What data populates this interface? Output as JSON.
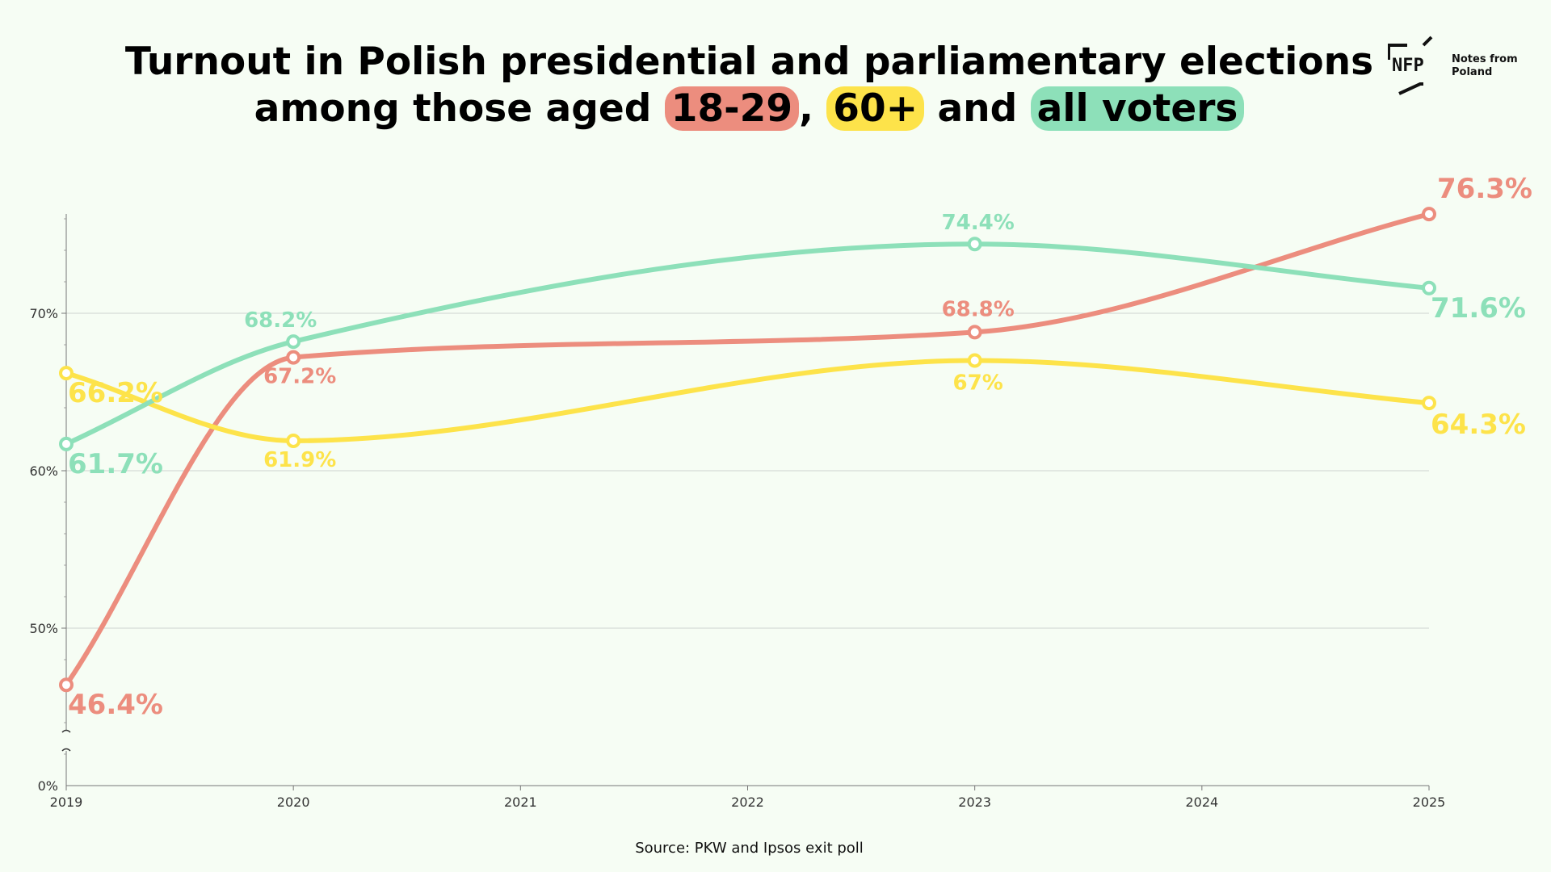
{
  "title": {
    "line1": "Turnout in Polish presidential and parliamentary elections",
    "line2_prefix": "among those aged ",
    "hl1": "18-29",
    "sep1": ", ",
    "hl2": "60+",
    "sep2": " and ",
    "hl3": "all voters"
  },
  "logo": {
    "mark": "NFP",
    "text_line1": "Notes from",
    "text_line2": "Poland"
  },
  "source": "Source: PKW and Ipsos exit poll",
  "colors": {
    "red": "#ec8d7e",
    "yellow": "#fde34a",
    "green": "#8de0b9",
    "grid": "#cfd3cf",
    "axis": "#777777"
  },
  "chart_data": {
    "type": "line",
    "x_ticks": [
      "2019",
      "2020",
      "2021",
      "2022",
      "2023",
      "2024",
      "2025"
    ],
    "y_ticks": [
      "0%",
      "50%",
      "60%",
      "70%"
    ],
    "y_axis_broken": true,
    "ylim": [
      40,
      77
    ],
    "grid": "horizontal",
    "series": [
      {
        "name": "18-29",
        "color": "#ec8d7e",
        "points": [
          {
            "x": 2019,
            "y": 46.4,
            "label": "46.4%"
          },
          {
            "x": 2020,
            "y": 67.2,
            "label": "67.2%"
          },
          {
            "x": 2023,
            "y": 68.8,
            "label": "68.8%"
          },
          {
            "x": 2025,
            "y": 76.3,
            "label": "76.3%"
          }
        ]
      },
      {
        "name": "60+",
        "color": "#fde34a",
        "points": [
          {
            "x": 2019,
            "y": 66.2,
            "label": "66.2%"
          },
          {
            "x": 2020,
            "y": 61.9,
            "label": "61.9%"
          },
          {
            "x": 2023,
            "y": 67.0,
            "label": "67%"
          },
          {
            "x": 2025,
            "y": 64.3,
            "label": "64.3%"
          }
        ]
      },
      {
        "name": "all voters",
        "color": "#8de0b9",
        "points": [
          {
            "x": 2019,
            "y": 61.7,
            "label": "61.7%"
          },
          {
            "x": 2020,
            "y": 68.2,
            "label": "68.2%"
          },
          {
            "x": 2023,
            "y": 74.4,
            "label": "74.4%"
          },
          {
            "x": 2025,
            "y": 71.6,
            "label": "71.6%"
          }
        ]
      }
    ]
  }
}
